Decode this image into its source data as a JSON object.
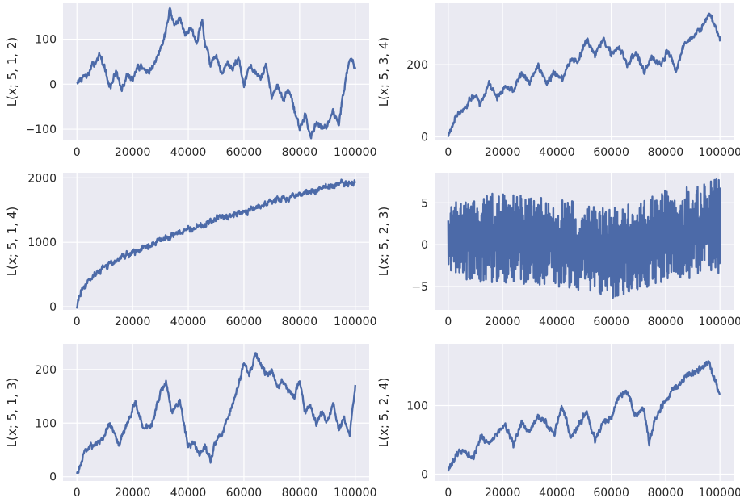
{
  "figure": {
    "line_color": "#4c6aa8",
    "plot_bg": "#eaeaf2",
    "grid_color": "#ffffff"
  },
  "chart_data": [
    {
      "type": "line",
      "ylabel": "L(x; 5, 1, 2)",
      "xlim": [
        -5000,
        105000
      ],
      "ylim": [
        -125,
        180
      ],
      "xticks": [
        0,
        20000,
        40000,
        60000,
        80000,
        100000
      ],
      "xtick_labels": [
        "0",
        "20000",
        "40000",
        "60000",
        "80000",
        "100000"
      ],
      "yticks": [
        -100,
        0,
        100
      ],
      "ytick_labels": [
        "−100",
        "0",
        "100"
      ],
      "grid": true,
      "series": [
        {
          "x": [
            0,
            4000,
            6000,
            8000,
            10000,
            12000,
            14000,
            16000,
            18000,
            20000,
            22000,
            24000,
            26000,
            28000,
            30000,
            32000,
            33500,
            35000,
            37000,
            39000,
            41000,
            43000,
            45000,
            46000,
            48000,
            50000,
            52000,
            54000,
            56000,
            58000,
            60000,
            62000,
            64000,
            66000,
            68000,
            70000,
            72000,
            74000,
            76000,
            78000,
            80000,
            82000,
            84000,
            86000,
            88000,
            90000,
            92000,
            94000,
            96000,
            98000,
            100000
          ],
          "y": [
            5,
            20,
            45,
            65,
            35,
            -10,
            30,
            -15,
            20,
            10,
            40,
            35,
            25,
            45,
            80,
            120,
            170,
            130,
            145,
            110,
            125,
            95,
            140,
            95,
            45,
            60,
            20,
            45,
            35,
            60,
            -5,
            40,
            25,
            10,
            40,
            -25,
            0,
            -35,
            -10,
            -55,
            -100,
            -70,
            -115,
            -80,
            -95,
            -90,
            -60,
            -90,
            -10,
            60,
            40
          ]
        }
      ]
    },
    {
      "type": "line",
      "ylabel": "L(x; 5, 3, 4)",
      "xlim": [
        -5000,
        105000
      ],
      "ylim": [
        -10,
        370
      ],
      "xticks": [
        0,
        20000,
        40000,
        60000,
        80000,
        100000
      ],
      "xtick_labels": [
        "0",
        "20000",
        "40000",
        "60000",
        "80000",
        "100000"
      ],
      "yticks": [
        0,
        200
      ],
      "ytick_labels": [
        "0",
        "200"
      ],
      "grid": true,
      "series": [
        {
          "x": [
            0,
            3000,
            6000,
            9000,
            12000,
            15000,
            18000,
            21000,
            24000,
            27000,
            30000,
            33000,
            36000,
            39000,
            42000,
            45000,
            48000,
            51000,
            54000,
            57000,
            60000,
            63000,
            66000,
            69000,
            72000,
            75000,
            78000,
            81000,
            84000,
            87000,
            90000,
            93000,
            96000,
            98000,
            100000
          ],
          "y": [
            0,
            60,
            80,
            115,
            95,
            150,
            110,
            140,
            130,
            175,
            150,
            200,
            150,
            175,
            160,
            215,
            210,
            275,
            225,
            270,
            230,
            250,
            195,
            240,
            180,
            220,
            200,
            240,
            185,
            260,
            280,
            300,
            340,
            310,
            270
          ]
        }
      ]
    },
    {
      "type": "line",
      "ylabel": "L(x; 5, 1, 4)",
      "xlim": [
        -5000,
        105000
      ],
      "ylim": [
        -50,
        2080
      ],
      "xticks": [
        0,
        20000,
        40000,
        60000,
        80000,
        100000
      ],
      "xtick_labels": [
        "0",
        "20000",
        "40000",
        "60000",
        "80000",
        "100000"
      ],
      "yticks": [
        0,
        1000,
        2000
      ],
      "ytick_labels": [
        "0",
        "1000",
        "2000"
      ],
      "grid": true,
      "series": [
        {
          "x": [
            0,
            500,
            1500,
            3000,
            5000,
            7500,
            10000,
            15000,
            20000,
            25000,
            30000,
            35000,
            40000,
            45000,
            50000,
            55000,
            60000,
            65000,
            70000,
            75000,
            80000,
            85000,
            90000,
            93000,
            95000,
            97000,
            99000,
            100000
          ],
          "y": [
            0,
            120,
            230,
            340,
            440,
            540,
            600,
            740,
            850,
            930,
            1030,
            1130,
            1210,
            1260,
            1360,
            1400,
            1470,
            1550,
            1630,
            1680,
            1750,
            1800,
            1860,
            1870,
            1930,
            1900,
            1880,
            1940
          ]
        }
      ]
    },
    {
      "type": "line",
      "ylabel": "L(x; 5, 2, 3)",
      "xlim": [
        -5000,
        105000
      ],
      "ylim": [
        -7.8,
        8.6
      ],
      "xticks": [
        0,
        20000,
        40000,
        60000,
        80000,
        100000
      ],
      "xtick_labels": [
        "0",
        "20000",
        "40000",
        "60000",
        "80000",
        "100000"
      ],
      "yticks": [
        -5,
        0,
        5
      ],
      "ytick_labels": [
        "−5",
        "0",
        "5"
      ],
      "grid": true,
      "series": [
        {
          "x": [
            0,
            10000,
            20000,
            30000,
            40000,
            50000,
            60000,
            70000,
            80000,
            90000,
            100000
          ],
          "y_max": [
            5,
            5.5,
            6.5,
            6,
            5.5,
            5,
            4.5,
            5,
            6.5,
            7,
            8
          ],
          "y_min": [
            -3.5,
            -4.5,
            -4.5,
            -5,
            -5,
            -5.5,
            -6.5,
            -5.5,
            -4.5,
            -4,
            -3.5
          ]
        }
      ]
    },
    {
      "type": "line",
      "ylabel": "L(x; 5, 1, 3)",
      "xlim": [
        -5000,
        105000
      ],
      "ylim": [
        -8,
        248
      ],
      "xticks": [
        0,
        20000,
        40000,
        60000,
        80000,
        100000
      ],
      "xtick_labels": [
        "0",
        "20000",
        "40000",
        "60000",
        "80000",
        "100000"
      ],
      "yticks": [
        0,
        100,
        200
      ],
      "ytick_labels": [
        "0",
        "100",
        "200"
      ],
      "grid": true,
      "series": [
        {
          "x": [
            0,
            3000,
            6000,
            9000,
            12000,
            15000,
            18000,
            21000,
            24000,
            27000,
            30000,
            32000,
            34000,
            37000,
            40000,
            42000,
            44000,
            46000,
            48000,
            50000,
            52000,
            55000,
            58000,
            60000,
            62000,
            64000,
            66000,
            68000,
            70000,
            72000,
            74000,
            76000,
            78000,
            80000,
            82000,
            84000,
            86000,
            88000,
            90000,
            92000,
            94000,
            96000,
            98000,
            99000,
            100000
          ],
          "y": [
            5,
            50,
            60,
            70,
            100,
            60,
            100,
            140,
            90,
            95,
            160,
            175,
            120,
            140,
            55,
            65,
            40,
            55,
            30,
            70,
            80,
            120,
            170,
            210,
            190,
            230,
            210,
            190,
            200,
            170,
            180,
            160,
            150,
            180,
            120,
            130,
            95,
            120,
            100,
            140,
            90,
            110,
            80,
            130,
            165
          ]
        }
      ]
    },
    {
      "type": "line",
      "ylabel": "L(x; 5, 2, 4)",
      "xlim": [
        -5000,
        105000
      ],
      "ylim": [
        -10,
        190
      ],
      "xticks": [
        0,
        20000,
        40000,
        60000,
        80000,
        100000
      ],
      "xtick_labels": [
        "0",
        "20000",
        "40000",
        "60000",
        "80000",
        "100000"
      ],
      "yticks": [
        0,
        100
      ],
      "ytick_labels": [
        "0",
        "100"
      ],
      "grid": true,
      "series": [
        {
          "x": [
            0,
            3000,
            6000,
            9000,
            12000,
            15000,
            18000,
            21000,
            24000,
            27000,
            30000,
            33000,
            36000,
            39000,
            42000,
            45000,
            48000,
            51000,
            54000,
            57000,
            60000,
            63000,
            66000,
            69000,
            72000,
            74000,
            76000,
            79000,
            82000,
            85000,
            88000,
            91000,
            94000,
            96000,
            98000,
            100000
          ],
          "y": [
            2,
            30,
            35,
            20,
            55,
            45,
            60,
            70,
            45,
            75,
            60,
            85,
            75,
            60,
            100,
            55,
            70,
            90,
            50,
            75,
            85,
            115,
            120,
            85,
            95,
            45,
            80,
            100,
            120,
            130,
            145,
            150,
            155,
            165,
            140,
            115
          ]
        }
      ]
    }
  ]
}
